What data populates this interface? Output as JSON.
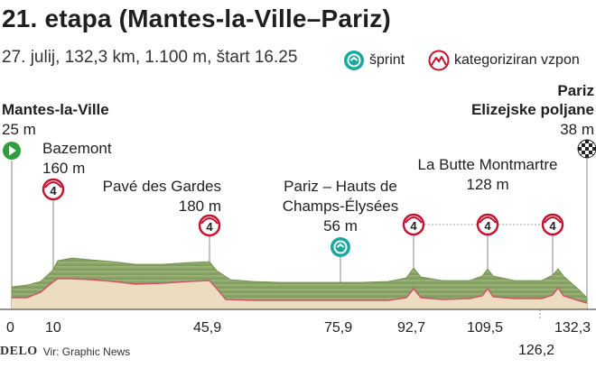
{
  "header": {
    "title": "21. etapa (Mantes-la-Ville–Pariz)",
    "subtitle": "27. julij, 132,3 km, 1.100 m, štart 16.25"
  },
  "legend": {
    "sprint_label": "šprint",
    "climb_label": "kategoriziran vzpon"
  },
  "start": {
    "name": "Mantes-la-Ville",
    "elevation": "25 m"
  },
  "finish": {
    "name_line1": "Pariz",
    "name_line2": "Elizejske poljane",
    "elevation": "38 m"
  },
  "climbs": [
    {
      "name": "Bazemont",
      "elevation": "160 m",
      "category": "4"
    },
    {
      "name": "Pavé des Gardes",
      "elevation": "180 m",
      "category": "4"
    },
    {
      "name": "La Butte Montmartre",
      "elevation": "128 m",
      "category": "4"
    }
  ],
  "sprint": {
    "name_line1": "Pariz – Hauts de",
    "name_line2": "Champs-Élysées",
    "elevation": "56 m"
  },
  "km_markers": [
    "0",
    "10",
    "45,9",
    "75,9",
    "92,7",
    "109,5",
    "132,3",
    "126,2"
  ],
  "footer": {
    "brand": "DELO",
    "source": "Vir: Graphic News"
  },
  "colors": {
    "climb_red": "#c8102e",
    "sprint_teal": "#1aa7a0",
    "start_green": "#2e9e3e",
    "terrain_green": "#8fa86a",
    "profile_fill": "#ecdcc0",
    "profile_line": "#d2556a"
  }
}
